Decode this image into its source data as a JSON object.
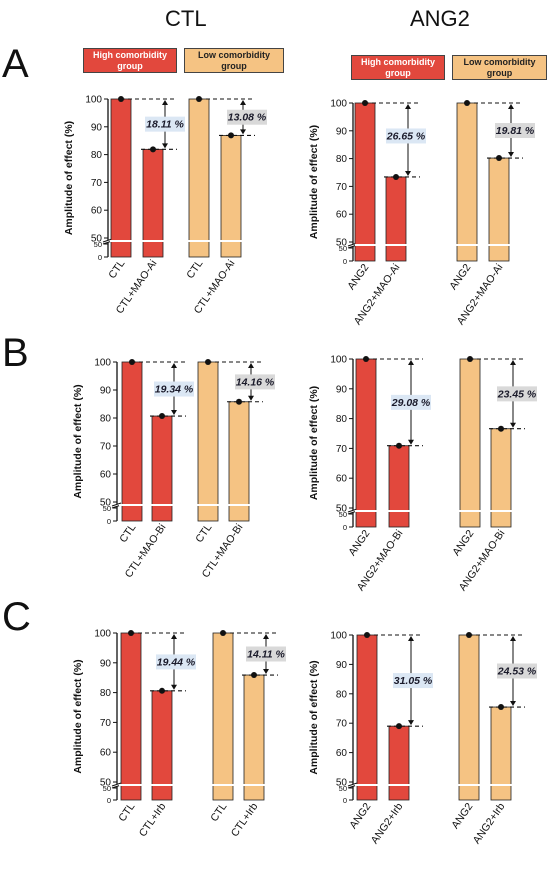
{
  "columns": {
    "left": "CTL",
    "right": "ANG2"
  },
  "panels": [
    "A",
    "B",
    "C"
  ],
  "legend": {
    "high": "High comorbidity group",
    "low": "Low comorbidity group"
  },
  "colors": {
    "high": "#e2483d",
    "low": "#f5c383",
    "percent_box": "#d9d9d9",
    "marker": "#111111"
  },
  "chart_data": [
    {
      "panel": "A",
      "column": "CTL",
      "type": "bar",
      "ylabel": "Amplitude of effect (%)",
      "y_ticks": [
        "100",
        "90",
        "80",
        "70",
        "60",
        "50",
        "50",
        "0"
      ],
      "ylim": [
        0,
        100
      ],
      "y_break": [
        5,
        50
      ],
      "categories": [
        "CTL",
        "CTL+MAO-Ai",
        "CTL",
        "CTL+MAO-Ai"
      ],
      "groups": [
        "High comorbidity group",
        "High comorbidity group",
        "Low comorbidity group",
        "Low comorbidity group"
      ],
      "values": [
        100,
        81.9,
        100,
        86.9
      ],
      "differences": [
        "18.11 %",
        "13.08 %"
      ]
    },
    {
      "panel": "A",
      "column": "ANG2",
      "type": "bar",
      "ylabel": "Amplitude of effect (%)",
      "y_ticks": [
        "100",
        "90",
        "80",
        "70",
        "60",
        "50",
        "50",
        "0"
      ],
      "ylim": [
        0,
        100
      ],
      "y_break": [
        5,
        50
      ],
      "categories": [
        "ANG2",
        "ANG2+MAO-Ai",
        "ANG2",
        "ANG2+MAO-Ai"
      ],
      "groups": [
        "High comorbidity group",
        "High comorbidity group",
        "Low comorbidity group",
        "Low comorbidity group"
      ],
      "values": [
        100,
        73.4,
        100,
        80.2
      ],
      "differences": [
        "26.65 %",
        "19.81 %"
      ]
    },
    {
      "panel": "B",
      "column": "CTL",
      "type": "bar",
      "ylabel": "Amplitude of effect (%)",
      "y_ticks": [
        "100",
        "90",
        "80",
        "70",
        "60",
        "50",
        "50",
        "0"
      ],
      "ylim": [
        0,
        100
      ],
      "y_break": [
        5,
        50
      ],
      "categories": [
        "CTL",
        "CTL+MAO-Bi",
        "CTL",
        "CTL+MAO-Bi"
      ],
      "groups": [
        "High comorbidity group",
        "High comorbidity group",
        "Low comorbidity group",
        "Low comorbidity group"
      ],
      "values": [
        100,
        80.7,
        100,
        85.8
      ],
      "differences": [
        "19.34 %",
        "14.16 %"
      ]
    },
    {
      "panel": "B",
      "column": "ANG2",
      "type": "bar",
      "ylabel": "Amplitude of effect (%)",
      "y_ticks": [
        "100",
        "90",
        "80",
        "70",
        "60",
        "50",
        "50",
        "0"
      ],
      "ylim": [
        0,
        100
      ],
      "y_break": [
        5,
        50
      ],
      "categories": [
        "ANG2",
        "ANG2+MAO-Bi",
        "ANG2",
        "ANG2+MAO-Bi"
      ],
      "groups": [
        "High comorbidity group",
        "High comorbidity group",
        "Low comorbidity group",
        "Low comorbidity group"
      ],
      "values": [
        100,
        70.9,
        100,
        76.6
      ],
      "differences": [
        "29.08 %",
        "23.45 %"
      ]
    },
    {
      "panel": "C",
      "column": "CTL",
      "type": "bar",
      "ylabel": "Amplitude of effect (%)",
      "y_ticks": [
        "100",
        "90",
        "80",
        "70",
        "60",
        "50",
        "50",
        "0"
      ],
      "ylim": [
        0,
        100
      ],
      "y_break": [
        5,
        50
      ],
      "categories": [
        "CTL",
        "CTL+Irb",
        "CTL",
        "CTL+Irb"
      ],
      "groups": [
        "High comorbidity group",
        "High comorbidity group",
        "Low comorbidity group",
        "Low comorbidity group"
      ],
      "values": [
        100,
        80.6,
        100,
        85.9
      ],
      "differences": [
        "19.44 %",
        "14.11 %"
      ]
    },
    {
      "panel": "C",
      "column": "ANG2",
      "type": "bar",
      "ylabel": "Amplitude of effect (%)",
      "y_ticks": [
        "100",
        "90",
        "80",
        "70",
        "60",
        "50",
        "50",
        "0"
      ],
      "ylim": [
        0,
        100
      ],
      "y_break": [
        5,
        50
      ],
      "categories": [
        "ANG2",
        "ANG2+Irb",
        "ANG2",
        "ANG2+Irb"
      ],
      "groups": [
        "High comorbidity group",
        "High comorbidity group",
        "Low comorbidity group",
        "Low comorbidity group"
      ],
      "values": [
        100,
        69.0,
        100,
        75.5
      ],
      "differences": [
        "31.05 %",
        "24.53 %"
      ]
    }
  ]
}
